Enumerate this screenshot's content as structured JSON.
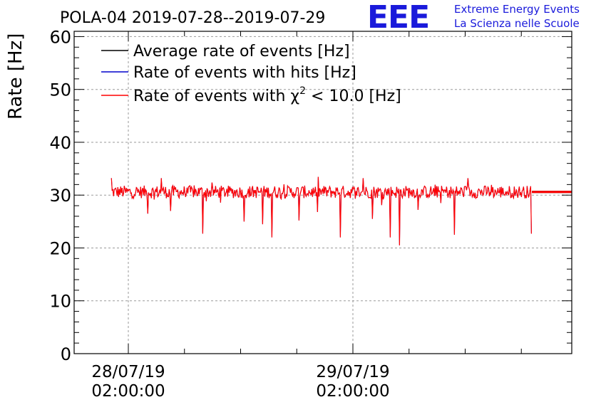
{
  "chart_data": {
    "type": "line",
    "title": "POLA-04 2019-07-28--2019-07-29",
    "ylabel": "Rate [Hz]",
    "xlabel": "",
    "ylim": [
      0,
      61
    ],
    "y_ticks": [
      0,
      10,
      20,
      30,
      40,
      50,
      60
    ],
    "y_tick_labels": [
      "0",
      "10",
      "20",
      "30",
      "40",
      "50",
      "60"
    ],
    "x_tick_labels": [
      {
        "date": "28/07/19",
        "time": "02:00:00"
      },
      {
        "date": "29/07/19",
        "time": "02:00:00"
      }
    ],
    "grid": true,
    "legend": [
      {
        "label": "Average rate of events [Hz]",
        "color": "#000000"
      },
      {
        "label": "Rate of events with hits [Hz]",
        "color": "#0000cc"
      },
      {
        "label_prefix": "Rate of events with ",
        "label_symbol": "χ",
        "label_superscript": "2",
        "label_suffix": " < 10.0 [Hz]",
        "color": "#ff0000"
      }
    ],
    "series": [
      {
        "name": "Average rate of events [Hz]",
        "color": "#000000",
        "value": 30.6
      },
      {
        "name": "Rate of events with hits [Hz]",
        "color": "#0000cc",
        "baseline": 30.6,
        "noise": 1.2
      },
      {
        "name": "Rate of events with chi2 < 10.0 [Hz]",
        "color": "#ff0000",
        "baseline": 30.6,
        "noise": 1.2,
        "dips": [
          {
            "t": 0.13,
            "v": 26.5
          },
          {
            "t": 0.25,
            "v": 22.7
          },
          {
            "t": 0.34,
            "v": 25.0
          },
          {
            "t": 0.38,
            "v": 24.5
          },
          {
            "t": 0.4,
            "v": 22.0
          },
          {
            "t": 0.46,
            "v": 25.2
          },
          {
            "t": 0.55,
            "v": 22.0
          },
          {
            "t": 0.62,
            "v": 25.5
          },
          {
            "t": 0.66,
            "v": 22.0
          },
          {
            "t": 0.68,
            "v": 20.5
          },
          {
            "t": 0.8,
            "v": 22.5
          },
          {
            "t": 0.99,
            "v": 22.7
          },
          {
            "t": 0.18,
            "v": 27.0
          },
          {
            "t": 0.5,
            "v": 26.8
          },
          {
            "t": 0.72,
            "v": 27.2
          }
        ],
        "data_span_frac": [
          0.075,
          0.92
        ]
      }
    ]
  },
  "logo": {
    "mark": "EEE",
    "line1": "Extreme Energy Events",
    "line2": "La Scienza nelle Scuole",
    "color": "#1a1adb"
  },
  "colors": {
    "grid": "#9a9a9a",
    "axis": "#000000",
    "red": "#ff0000",
    "blue": "#0000cc",
    "black": "#000000"
  }
}
